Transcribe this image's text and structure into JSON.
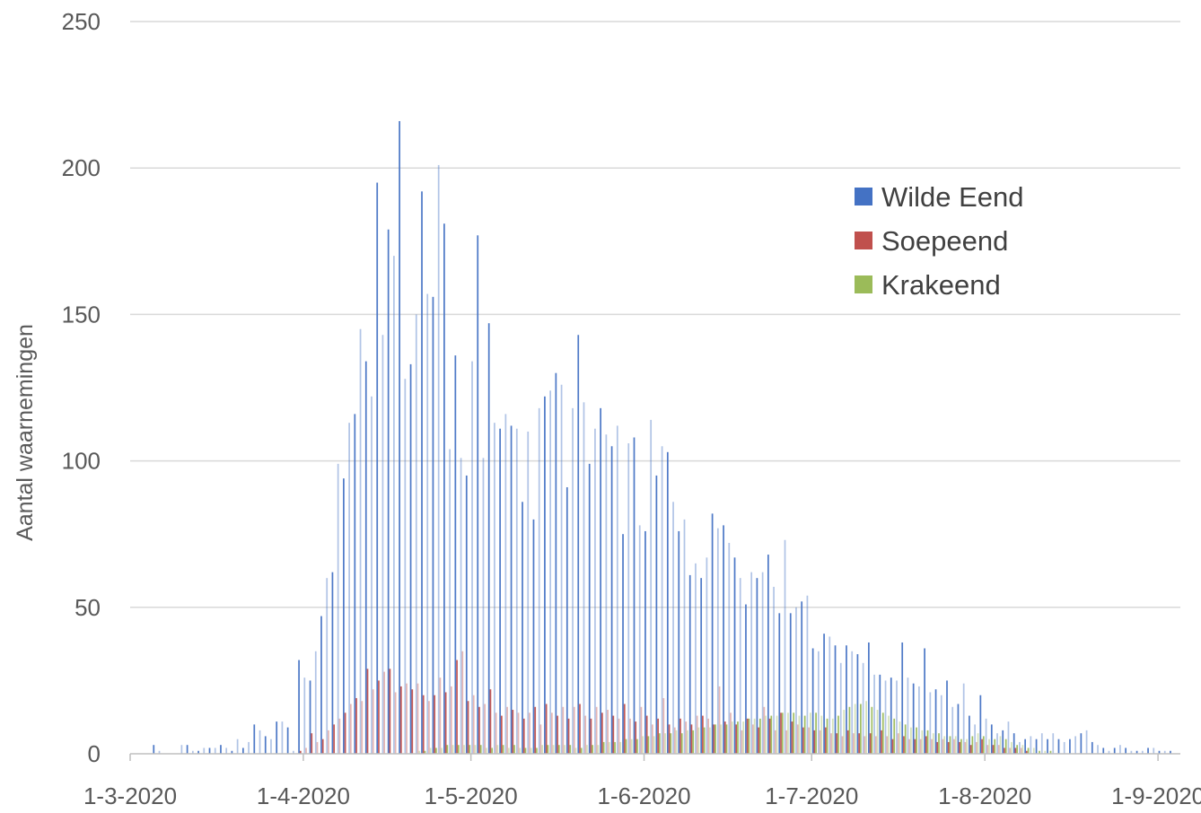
{
  "chart_data": {
    "type": "bar",
    "title": "",
    "xlabel": "",
    "ylabel": "Aantal waarnemingen",
    "ylim": [
      0,
      250
    ],
    "yticks": [
      0,
      50,
      100,
      150,
      200,
      250
    ],
    "xlim": [
      "2020-03-01",
      "2020-09-05"
    ],
    "xtick_labels": [
      "1-3-2020",
      "1-4-2020",
      "1-5-2020",
      "1-6-2020",
      "1-7-2020",
      "1-8-2020",
      "1-9-2020"
    ],
    "xtick_dates": [
      "2020-03-01",
      "2020-04-01",
      "2020-05-01",
      "2020-06-01",
      "2020-07-01",
      "2020-08-01",
      "2020-09-01"
    ],
    "grid": true,
    "legend_position": "top-right",
    "series": [
      {
        "name": "Wilde Eend",
        "color": "#4472c4",
        "start_date": "2020-03-01",
        "values": [
          0,
          0,
          0,
          0,
          3,
          1,
          0,
          0,
          0,
          3,
          3,
          1,
          1,
          2,
          2,
          2,
          3,
          2,
          1,
          5,
          2,
          4,
          10,
          8,
          6,
          5,
          11,
          11,
          9,
          1,
          32,
          26,
          25,
          35,
          47,
          60,
          62,
          99,
          94,
          113,
          116,
          145,
          134,
          122,
          195,
          143,
          179,
          170,
          216,
          128,
          133,
          150,
          192,
          157,
          156,
          201,
          181,
          104,
          136,
          101,
          95,
          134,
          177,
          101,
          147,
          113,
          111,
          116,
          112,
          111,
          86,
          110,
          80,
          118,
          122,
          124,
          130,
          126,
          91,
          118,
          143,
          120,
          99,
          111,
          118,
          109,
          105,
          112,
          75,
          106,
          108,
          78,
          76,
          114,
          95,
          105,
          103,
          86,
          76,
          80,
          61,
          65,
          60,
          67,
          82,
          77,
          78,
          72,
          67,
          60,
          51,
          62,
          60,
          62,
          68,
          57,
          48,
          73,
          48,
          50,
          52,
          54,
          36,
          35,
          41,
          40,
          37,
          31,
          37,
          35,
          34,
          31,
          38,
          27,
          27,
          25,
          26,
          25,
          38,
          26,
          24,
          23,
          36,
          21,
          22,
          20,
          25,
          16,
          17,
          24,
          13,
          10,
          20,
          12,
          10,
          7,
          8,
          11,
          7,
          4,
          5,
          6,
          5,
          7,
          5,
          7,
          5,
          4,
          5,
          6,
          7,
          8,
          4,
          3,
          2,
          1,
          2,
          3,
          2,
          1,
          1,
          1,
          2,
          2,
          1,
          1,
          1,
          0,
          0,
          0,
          0,
          0,
          0,
          0,
          3,
          1,
          0,
          0,
          0,
          2,
          1,
          0,
          0,
          0,
          0,
          0
        ]
      },
      {
        "name": "Soepeend",
        "color": "#c0504d",
        "start_date": "2020-03-01",
        "values": [
          0,
          0,
          0,
          0,
          0,
          0,
          0,
          0,
          0,
          0,
          0,
          0,
          0,
          0,
          0,
          0,
          0,
          0,
          0,
          0,
          0,
          0,
          0,
          0,
          0,
          0,
          0,
          0,
          0,
          0,
          1,
          2,
          7,
          4,
          5,
          8,
          10,
          12,
          14,
          17,
          19,
          18,
          29,
          22,
          25,
          28,
          29,
          21,
          23,
          24,
          22,
          24,
          20,
          18,
          20,
          26,
          21,
          23,
          32,
          35,
          18,
          20,
          16,
          17,
          22,
          14,
          13,
          16,
          15,
          14,
          12,
          14,
          16,
          10,
          17,
          14,
          13,
          16,
          12,
          16,
          17,
          13,
          12,
          16,
          14,
          15,
          13,
          12,
          17,
          12,
          11,
          16,
          13,
          10,
          12,
          19,
          10,
          9,
          12,
          11,
          10,
          13,
          13,
          12,
          10,
          23,
          11,
          14,
          10,
          8,
          12,
          10,
          9,
          16,
          12,
          8,
          14,
          8,
          11,
          10,
          9,
          9,
          8,
          8,
          9,
          7,
          7,
          6,
          8,
          7,
          7,
          6,
          7,
          6,
          8,
          6,
          5,
          7,
          6,
          5,
          5,
          5,
          6,
          5,
          4,
          5,
          4,
          5,
          4,
          4,
          3,
          4,
          5,
          3,
          3,
          3,
          2,
          2,
          2,
          2,
          1,
          0,
          0,
          0,
          0,
          0,
          0,
          0,
          0,
          0,
          0,
          0,
          0,
          0,
          0,
          0,
          0,
          0,
          0,
          0,
          0,
          0,
          0,
          0,
          0,
          0,
          0,
          0,
          0,
          0,
          0,
          0,
          0,
          0,
          0,
          0,
          0,
          0,
          0,
          0,
          0,
          0,
          0,
          0,
          0,
          0,
          0,
          0
        ]
      },
      {
        "name": "Krakeend",
        "color": "#9bbb59",
        "start_date": "2020-03-01",
        "values": [
          0,
          0,
          0,
          0,
          0,
          0,
          0,
          0,
          0,
          0,
          0,
          0,
          0,
          0,
          0,
          0,
          0,
          0,
          0,
          0,
          0,
          0,
          0,
          0,
          0,
          0,
          0,
          0,
          0,
          0,
          0,
          0,
          0,
          0,
          0,
          0,
          0,
          0,
          0,
          0,
          0,
          0,
          0,
          0,
          0,
          0,
          0,
          0,
          0,
          0,
          0,
          1,
          1,
          2,
          2,
          2,
          3,
          3,
          3,
          3,
          3,
          3,
          3,
          2,
          2,
          3,
          3,
          2,
          3,
          2,
          2,
          2,
          2,
          3,
          3,
          3,
          3,
          3,
          3,
          2,
          2,
          3,
          3,
          3,
          4,
          4,
          4,
          4,
          5,
          5,
          5,
          6,
          6,
          6,
          7,
          7,
          7,
          8,
          7,
          8,
          8,
          9,
          9,
          9,
          10,
          10,
          10,
          11,
          11,
          11,
          12,
          12,
          12,
          13,
          13,
          13,
          14,
          14,
          14,
          13,
          13,
          14,
          14,
          13,
          12,
          12,
          13,
          15,
          16,
          17,
          17,
          18,
          16,
          15,
          14,
          13,
          12,
          11,
          10,
          9,
          9,
          8,
          8,
          7,
          7,
          6,
          6,
          6,
          5,
          5,
          6,
          7,
          6,
          5,
          5,
          6,
          5,
          4,
          3,
          3,
          2,
          2,
          1,
          1,
          1,
          0,
          0,
          0,
          0,
          0,
          0,
          0,
          0,
          0,
          0,
          0,
          0,
          0,
          0,
          0,
          0,
          0,
          0,
          0,
          0,
          0,
          0,
          0,
          0,
          0,
          0,
          0,
          0,
          0,
          0,
          0,
          0,
          0,
          0,
          0,
          0,
          0,
          0,
          0,
          0
        ]
      }
    ]
  }
}
